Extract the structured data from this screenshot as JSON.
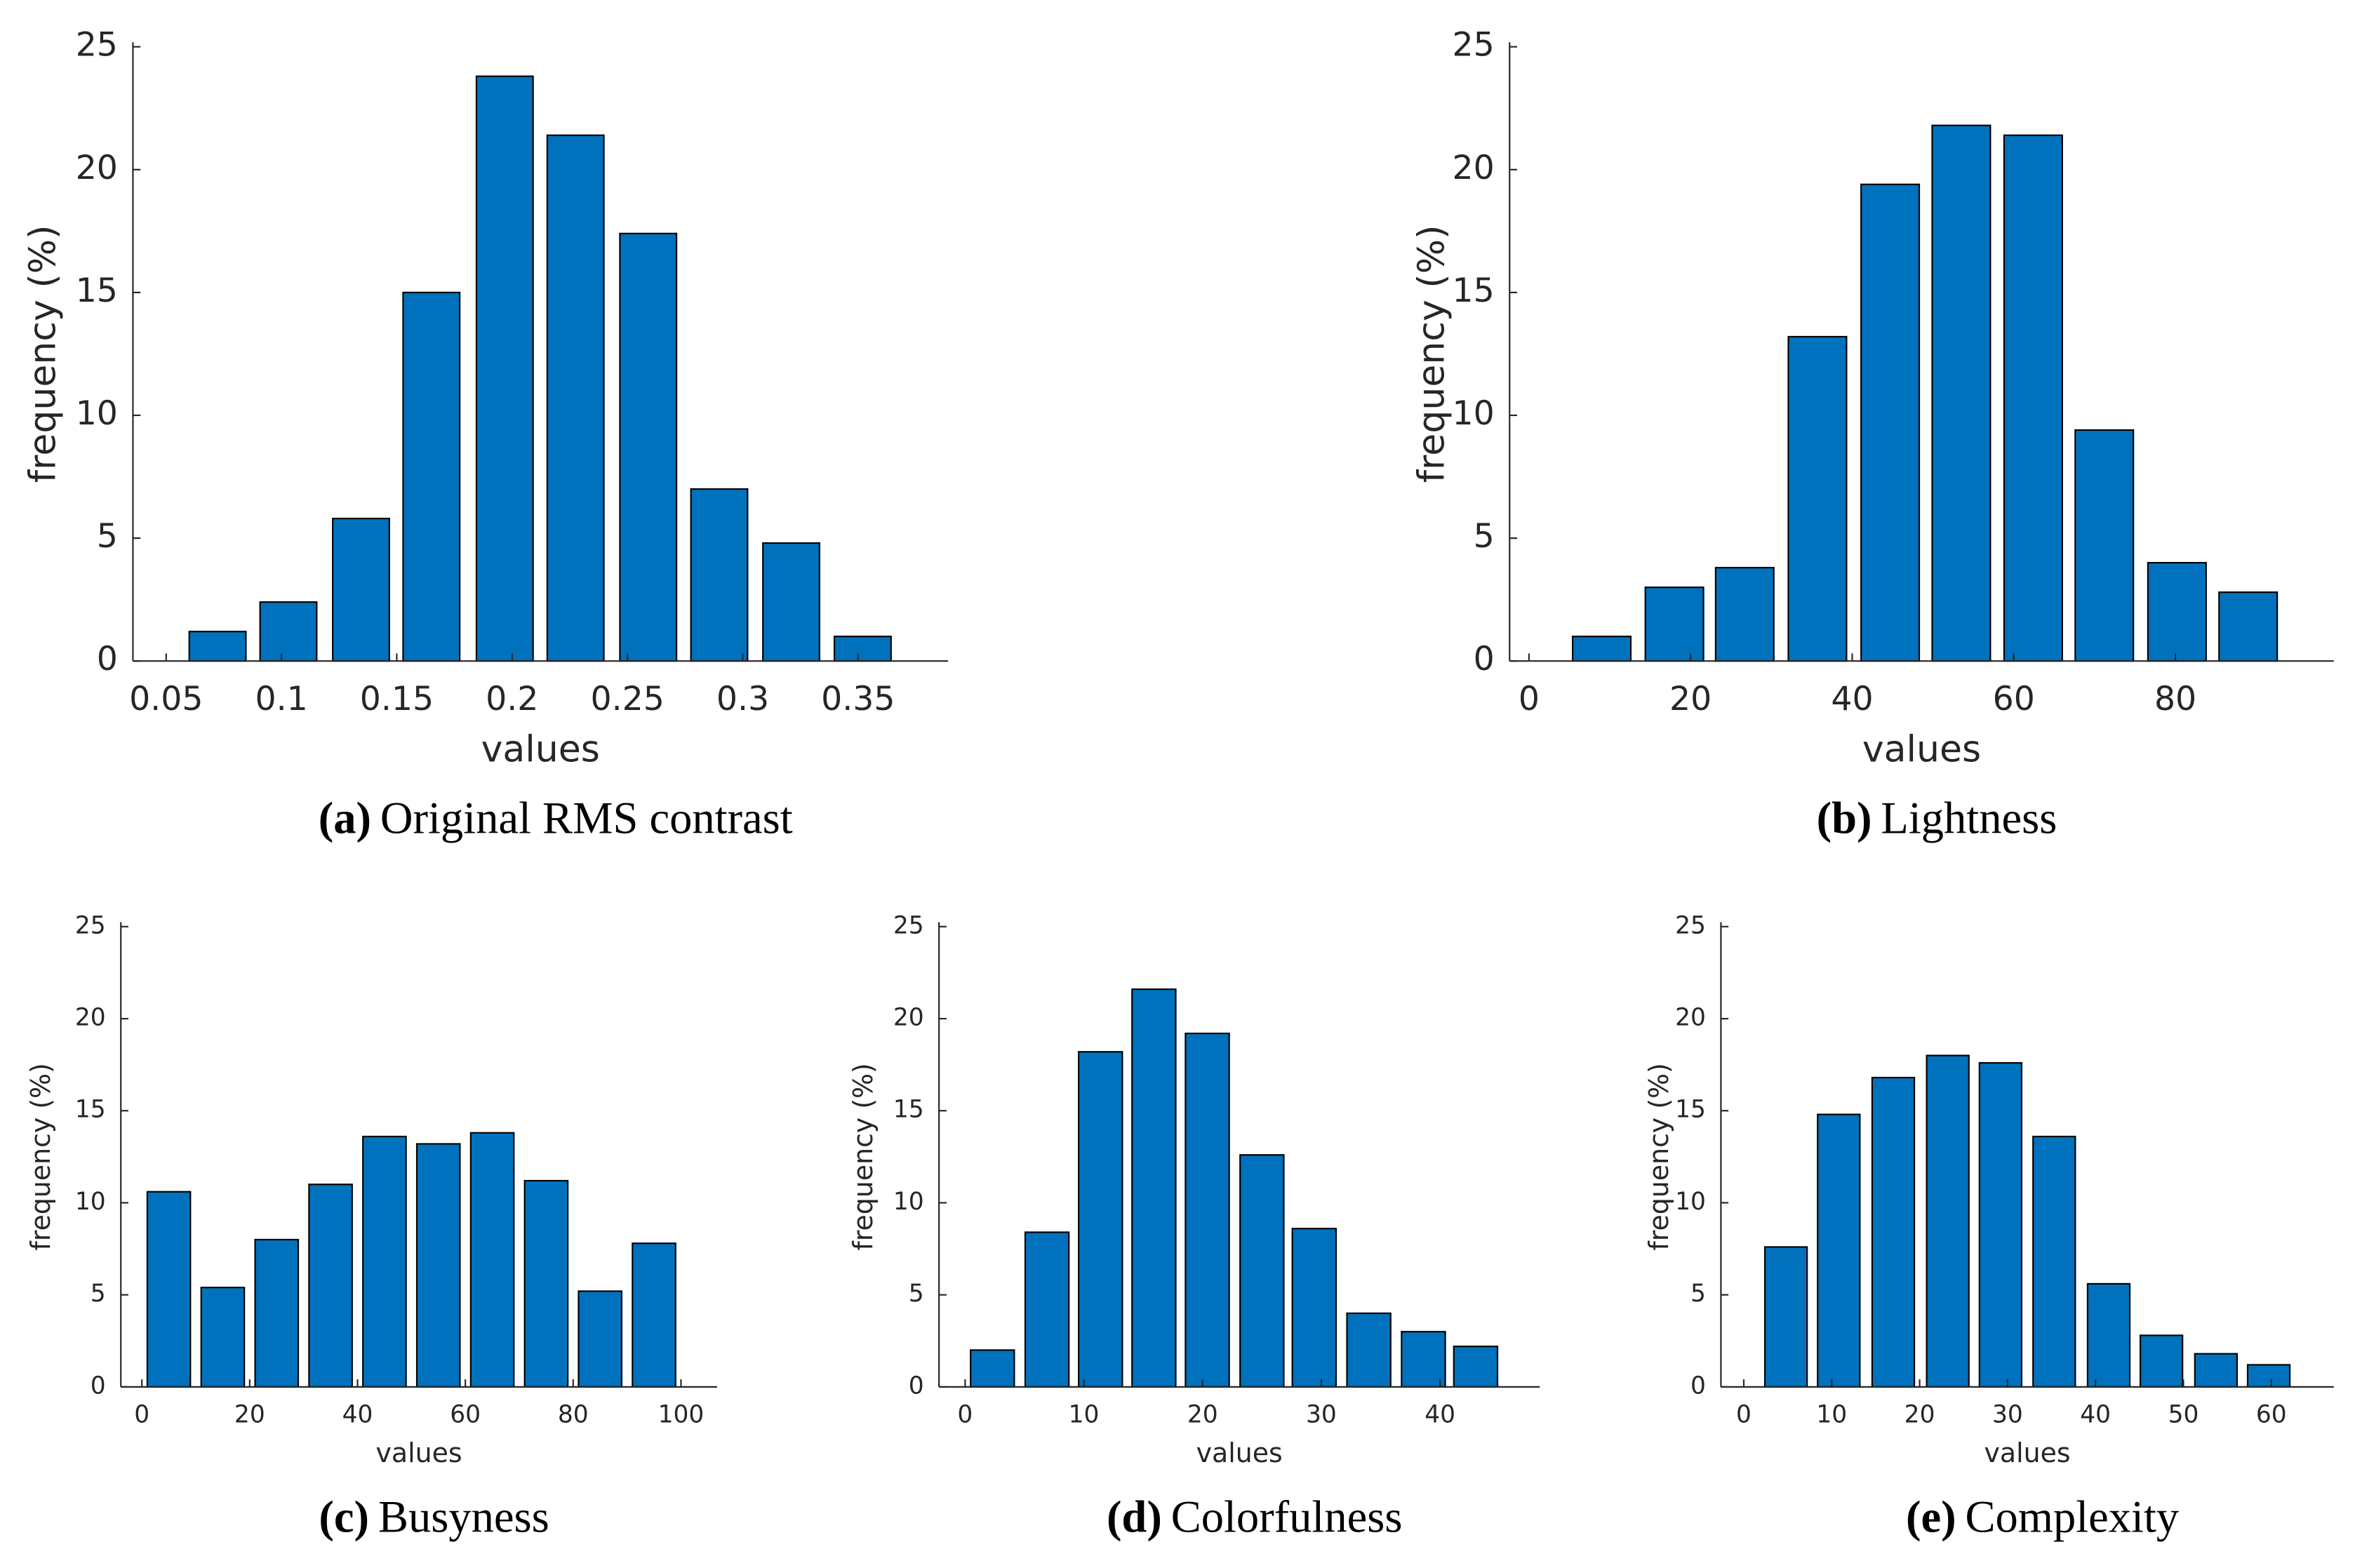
{
  "chart_data": [
    {
      "type": "bar",
      "caption_label": "(a)",
      "caption": "Original RMS contrast",
      "xlabel": "values",
      "ylabel": "frequency (%)",
      "color": "#0072bd",
      "x": [
        0.0723,
        0.103,
        0.1345,
        0.165,
        0.1968,
        0.2275,
        0.259,
        0.2898,
        0.321,
        0.352
      ],
      "values": [
        1.2,
        2.4,
        5.8,
        15.0,
        23.8,
        21.4,
        17.4,
        7.0,
        4.8,
        1.0
      ],
      "xlim": [
        0.0356,
        0.389
      ],
      "xticks": [
        0.05,
        0.1,
        0.15,
        0.2,
        0.25,
        0.3,
        0.35
      ],
      "ylim": [
        0,
        25
      ],
      "yticks": [
        0,
        5,
        10,
        15,
        20,
        25
      ]
    },
    {
      "type": "bar",
      "caption_label": "(b)",
      "caption": "Lightness",
      "xlabel": "values",
      "ylabel": "frequency (%)",
      "color": "#0072bd",
      "x": [
        9.0,
        18.0,
        26.7,
        35.7,
        44.7,
        53.5,
        62.4,
        71.2,
        80.2,
        89.0
      ],
      "values": [
        1.0,
        3.0,
        3.8,
        13.2,
        19.4,
        21.8,
        21.4,
        9.4,
        4.0,
        2.8
      ],
      "xlim": [
        -2.4,
        99.6
      ],
      "xticks": [
        0,
        20,
        40,
        60,
        80
      ],
      "ylim": [
        0,
        25
      ],
      "yticks": [
        0,
        5,
        10,
        15,
        20,
        25
      ]
    },
    {
      "type": "bar",
      "caption_label": "(c)",
      "caption": "Busyness",
      "xlabel": "values",
      "ylabel": "frequency (%)",
      "color": "#0072bd",
      "x": [
        5,
        15,
        25,
        35,
        45,
        55,
        65,
        75,
        85,
        95
      ],
      "values": [
        10.6,
        5.4,
        8.0,
        11.0,
        13.6,
        13.2,
        13.8,
        11.2,
        5.2,
        7.8
      ],
      "xlim": [
        -3.9,
        106.7
      ],
      "xticks": [
        0,
        20,
        40,
        60,
        80,
        100
      ],
      "ylim": [
        0,
        25
      ],
      "yticks": [
        0,
        5,
        10,
        15,
        20,
        25
      ]
    },
    {
      "type": "bar",
      "caption_label": "(d)",
      "caption": "Colorfulness",
      "xlabel": "values",
      "ylabel": "frequency (%)",
      "color": "#0072bd",
      "x": [
        2.3,
        6.9,
        11.4,
        15.9,
        20.4,
        25.0,
        29.4,
        34.0,
        38.6,
        43.0
      ],
      "values": [
        2.0,
        8.4,
        18.2,
        21.6,
        19.2,
        12.6,
        8.6,
        4.0,
        3.0,
        2.2
      ],
      "xlim": [
        -2.2,
        48.4
      ],
      "xticks": [
        0,
        10,
        20,
        30,
        40
      ],
      "ylim": [
        0,
        25
      ],
      "yticks": [
        0,
        5,
        10,
        15,
        20,
        25
      ]
    },
    {
      "type": "bar",
      "caption_label": "(e)",
      "caption": "Complexity",
      "xlabel": "values",
      "ylabel": "frequency (%)",
      "color": "#0072bd",
      "x": [
        4.8,
        10.8,
        17.0,
        23.2,
        29.2,
        35.3,
        41.5,
        47.5,
        53.7,
        59.7
      ],
      "values": [
        7.6,
        14.8,
        16.8,
        18.0,
        17.6,
        13.6,
        5.6,
        2.8,
        1.8,
        1.2
      ],
      "xlim": [
        -2.6,
        67.1
      ],
      "xticks": [
        0,
        10,
        20,
        30,
        40,
        50,
        60
      ],
      "ylim": [
        0,
        25
      ],
      "yticks": [
        0,
        5,
        10,
        15,
        20,
        25
      ]
    }
  ]
}
